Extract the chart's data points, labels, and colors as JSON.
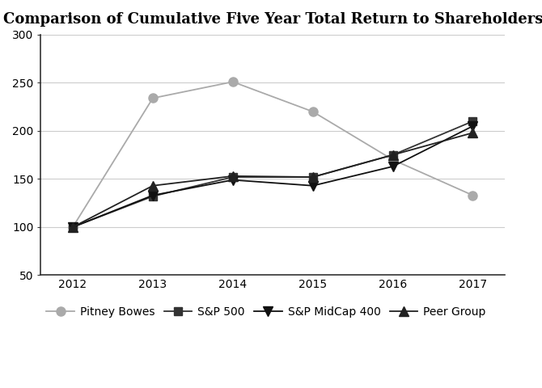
{
  "title": "Comparison of Cumulative Five Year Total Return to Shareholders",
  "years": [
    2012,
    2013,
    2014,
    2015,
    2016,
    2017
  ],
  "series": [
    {
      "label": "Pitney Bowes",
      "values": [
        100,
        234,
        251,
        220,
        170,
        133
      ],
      "color": "#aaaaaa",
      "marker": "o",
      "markersize": 8,
      "linewidth": 1.3,
      "linestyle": "-"
    },
    {
      "label": "S&P 500",
      "values": [
        100,
        132,
        152,
        152,
        175,
        210
      ],
      "color": "#333333",
      "marker": "s",
      "markersize": 7,
      "linewidth": 1.3,
      "linestyle": "-"
    },
    {
      "label": "S&P MidCap 400",
      "values": [
        100,
        133,
        149,
        143,
        163,
        205
      ],
      "color": "#111111",
      "marker": "v",
      "markersize": 8,
      "linewidth": 1.3,
      "linestyle": "-"
    },
    {
      "label": "Peer Group",
      "values": [
        100,
        143,
        153,
        152,
        175,
        198
      ],
      "color": "#222222",
      "marker": "^",
      "markersize": 8,
      "linewidth": 1.3,
      "linestyle": "-"
    }
  ],
  "ylim": [
    50,
    300
  ],
  "yticks": [
    50,
    100,
    150,
    200,
    250,
    300
  ],
  "xlim": [
    2011.6,
    2017.4
  ],
  "background_color": "#ffffff",
  "grid_color": "#cccccc",
  "title_fontsize": 13,
  "tick_fontsize": 10,
  "legend_fontsize": 10,
  "spine_color": "#333333"
}
